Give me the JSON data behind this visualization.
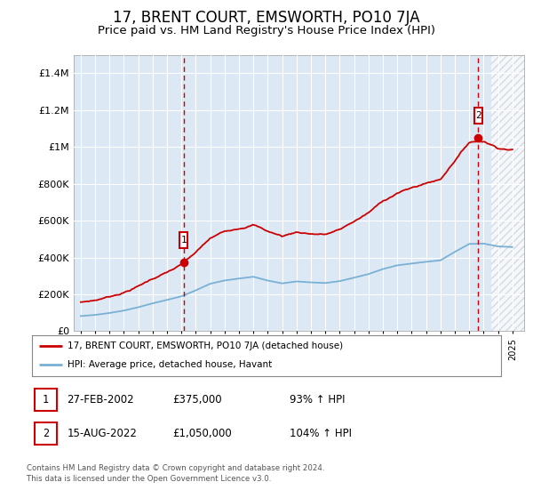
{
  "title": "17, BRENT COURT, EMSWORTH, PO10 7JA",
  "subtitle": "Price paid vs. HM Land Registry's House Price Index (HPI)",
  "title_fontsize": 12,
  "subtitle_fontsize": 9.5,
  "bg_color": "#dce9f5",
  "ylim": [
    0,
    1500000
  ],
  "yticks": [
    0,
    200000,
    400000,
    600000,
    800000,
    1000000,
    1200000,
    1400000
  ],
  "ytick_labels": [
    "£0",
    "£200K",
    "£400K",
    "£600K",
    "£800K",
    "£1M",
    "£1.2M",
    "£1.4M"
  ],
  "xlim_left": 1994.5,
  "xlim_right": 2025.8,
  "sale1_date": 2002.15,
  "sale1_price": 375000,
  "sale1_label": "1",
  "sale2_date": 2022.62,
  "sale2_price": 1050000,
  "sale2_label": "2",
  "legend_property": "17, BRENT COURT, EMSWORTH, PO10 7JA (detached house)",
  "legend_hpi": "HPI: Average price, detached house, Havant",
  "table_rows": [
    [
      "1",
      "27-FEB-2002",
      "£375,000",
      "93% ↑ HPI"
    ],
    [
      "2",
      "15-AUG-2022",
      "£1,050,000",
      "104% ↑ HPI"
    ]
  ],
  "footer": "Contains HM Land Registry data © Crown copyright and database right 2024.\nThis data is licensed under the Open Government Licence v3.0.",
  "property_color": "#cc0000",
  "hpi_color": "#7ab0d4",
  "dashed_color": "#cc0000",
  "hatch_start": 2023.5
}
